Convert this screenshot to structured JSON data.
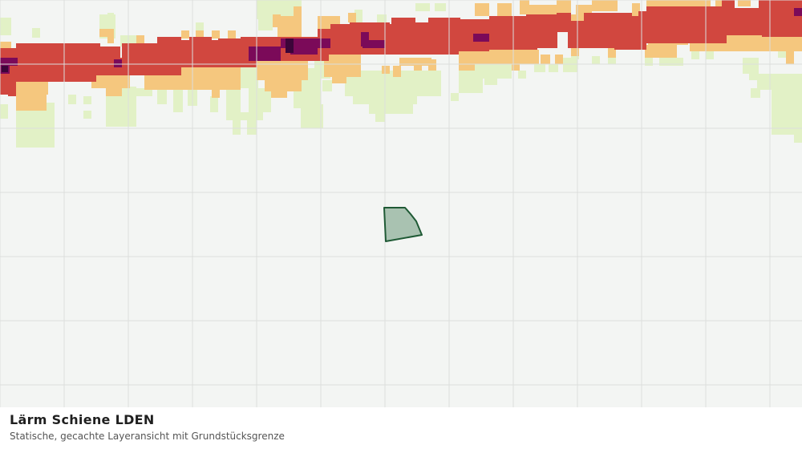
{
  "layer": {
    "title": "Lärm Schiene LDEN",
    "subtitle": "Statische, gecachte Layeransicht mit Grundstücksgrenze"
  },
  "colors": {
    "background": "#f3f5f3",
    "grid": "#dcdedc",
    "class_low": "#e2f1c6",
    "class_mid": "#f5c77e",
    "class_high": "#d1473f",
    "class_very_high": "#7b0a59",
    "class_max": "#3c0539",
    "parcel_fill": "#a9c2b1",
    "parcel_stroke": "#1f5a35"
  }
}
